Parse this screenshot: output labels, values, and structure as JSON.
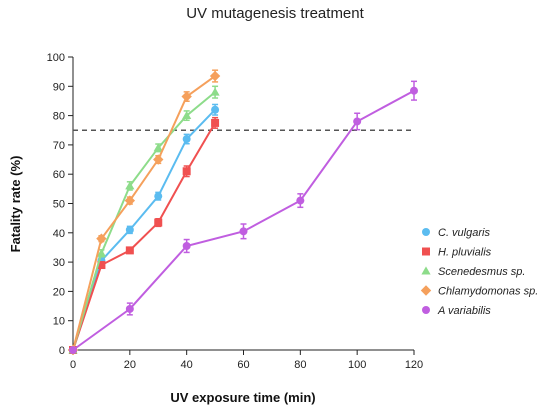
{
  "chart_data": {
    "type": "line",
    "title": "UV mutagenesis treatment",
    "xlabel": "UV exposure time (min)",
    "ylabel": "Fatality rate (%)",
    "xlim": [
      0,
      120
    ],
    "ylim": [
      0,
      100
    ],
    "xticks": [
      0,
      20,
      40,
      60,
      80,
      100,
      120
    ],
    "yticks": [
      0,
      10,
      20,
      30,
      40,
      50,
      60,
      70,
      80,
      90,
      100
    ],
    "grid": false,
    "legend_position": "right",
    "reference_line": {
      "y": 75,
      "style": "dashed",
      "color": "#555555"
    },
    "series": [
      {
        "name": "C. vulgaris",
        "color": "#5bbcf0",
        "marker": "circle",
        "x": [
          0,
          10,
          20,
          30,
          40,
          50
        ],
        "y": [
          0,
          30.5,
          41,
          52.5,
          72,
          82
        ],
        "err": [
          0.6,
          1.0,
          1.2,
          1.3,
          1.6,
          1.8
        ]
      },
      {
        "name": "H. pluvialis",
        "color": "#f05050",
        "marker": "square",
        "x": [
          0,
          10,
          20,
          30,
          40,
          50
        ],
        "y": [
          0,
          29,
          34,
          43.5,
          61,
          77.5
        ],
        "err": [
          0.6,
          1.0,
          1.0,
          1.3,
          1.8,
          1.8
        ]
      },
      {
        "name": "Scenedesmus sp.",
        "color": "#8ddc8a",
        "marker": "triangle",
        "x": [
          0,
          10,
          20,
          30,
          40,
          50
        ],
        "y": [
          0,
          33,
          56,
          69,
          80,
          88
        ],
        "err": [
          0.6,
          1.2,
          1.4,
          1.3,
          1.6,
          2.0
        ]
      },
      {
        "name": "Chlamydomonas sp.",
        "color": "#f5a05c",
        "marker": "diamond",
        "x": [
          0,
          10,
          20,
          30,
          40,
          50
        ],
        "y": [
          0,
          38,
          51,
          65,
          86.5,
          93.5
        ],
        "err": [
          0.6,
          1.0,
          1.2,
          1.3,
          1.6,
          2.0
        ]
      },
      {
        "name": "A variabilis",
        "color": "#c05ee0",
        "marker": "circle",
        "x": [
          0,
          20,
          40,
          60,
          80,
          100,
          120
        ],
        "y": [
          0,
          14,
          35.5,
          40.5,
          51,
          78,
          88.5
        ],
        "err": [
          0.6,
          2.0,
          2.2,
          2.5,
          2.3,
          2.8,
          3.2
        ]
      }
    ]
  }
}
